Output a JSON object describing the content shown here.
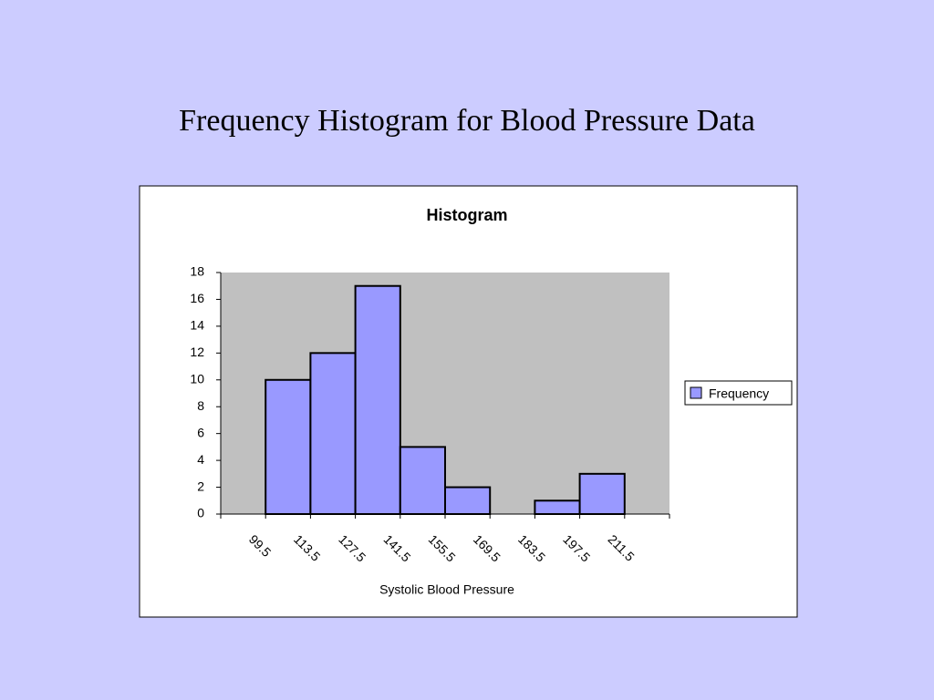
{
  "slide": {
    "title": "Frequency Histogram for Blood Pressure  Data"
  },
  "chart_data": {
    "type": "bar",
    "title": "Histogram",
    "x_label": "Systolic Blood Pressure",
    "categories": [
      "99.5",
      "113.5",
      "127.5",
      "141.5",
      "155.5",
      "169.5",
      "183.5",
      "197.5",
      "211.5",
      null
    ],
    "series": [
      {
        "name": "Frequency",
        "color": "#9999ff",
        "values": [
          0,
          10,
          12,
          17,
          5,
          2,
          0,
          1,
          3,
          0
        ]
      }
    ],
    "ylim": [
      0,
      18
    ],
    "yticks": [
      0,
      2,
      4,
      6,
      8,
      10,
      12,
      14,
      16,
      18
    ],
    "grid": false,
    "plot_background": "#c0c0c0",
    "legend": "right"
  }
}
